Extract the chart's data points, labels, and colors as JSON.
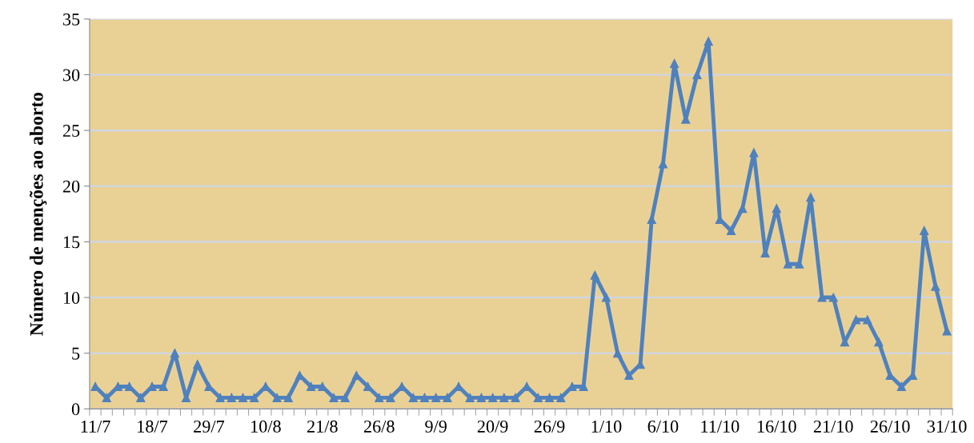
{
  "chart_data": {
    "type": "line",
    "ylabel": "Número de menções ao aborto",
    "categories": [
      "11/7",
      null,
      null,
      null,
      null,
      "18/7",
      null,
      null,
      null,
      null,
      "29/7",
      null,
      null,
      null,
      null,
      "10/8",
      null,
      null,
      null,
      null,
      "21/8",
      null,
      null,
      null,
      null,
      "26/8",
      null,
      null,
      null,
      null,
      "9/9",
      null,
      null,
      null,
      null,
      "20/9",
      null,
      null,
      null,
      null,
      "26/9",
      null,
      null,
      null,
      null,
      "1/10",
      null,
      null,
      null,
      null,
      "6/10",
      null,
      null,
      null,
      null,
      "11/10",
      null,
      null,
      null,
      null,
      "16/10",
      null,
      null,
      null,
      null,
      "21/10",
      null,
      null,
      null,
      null,
      "26/10",
      null,
      null,
      null,
      null,
      "31/10"
    ],
    "series": [
      {
        "color": "#4f81bd",
        "values": [
          2,
          1,
          2,
          2,
          1,
          2,
          2,
          5,
          1,
          4,
          2,
          1,
          1,
          1,
          1,
          2,
          1,
          1,
          3,
          2,
          2,
          1,
          1,
          3,
          2,
          1,
          1,
          2,
          1,
          1,
          1,
          1,
          2,
          1,
          1,
          1,
          1,
          1,
          2,
          1,
          1,
          1,
          2,
          2,
          12,
          10,
          5,
          3,
          4,
          17,
          22,
          31,
          26,
          30,
          33,
          17,
          16,
          18,
          23,
          14,
          18,
          13,
          13,
          19,
          10,
          10,
          6,
          8,
          8,
          6,
          3,
          2,
          3,
          16,
          11,
          7
        ]
      }
    ],
    "ylim": [
      0,
      35
    ],
    "yticks": [
      0,
      5,
      10,
      15,
      20,
      25,
      30,
      35
    ],
    "grid": "y",
    "marker": "triangle",
    "line_style": "solid"
  }
}
